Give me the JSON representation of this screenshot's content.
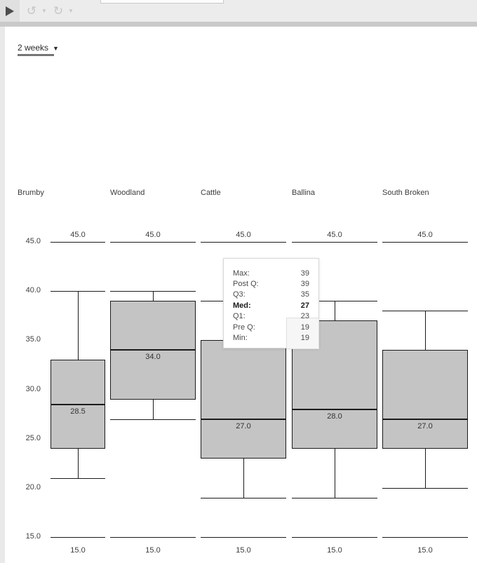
{
  "toolbar": {
    "play_icon": "play-triangle",
    "undo_icon": "undo-circular-arrow",
    "redo_icon": "redo-circular-arrow",
    "caret_glyph": "▼",
    "undo_glyph": "↺",
    "redo_glyph": "↻"
  },
  "filter": {
    "label": "2 weeks",
    "caret": "▼"
  },
  "colors": {
    "box_fill": "#c4c4c4",
    "line": "#1a1a1a",
    "toolbar_bg": "#ececec",
    "divider": "#c9c9c9",
    "accent_underline": "#757575",
    "muted_icon": "#c6c6c6",
    "dark_icon": "#4d4d4d",
    "tooltip_border": "#d6d6d6"
  },
  "chart_data": {
    "type": "boxplot",
    "title": "",
    "xlabel": "",
    "ylabel": "",
    "y_axis": {
      "range": [
        15,
        45
      ],
      "tick_values": [
        45,
        40,
        35,
        30,
        25,
        20,
        15
      ],
      "tick_labels": [
        "45.0",
        "40.0",
        "35.0",
        "30.0",
        "25.0",
        "20.0",
        "15.0"
      ],
      "grid": false
    },
    "column_limit": {
      "top_value": 45,
      "bottom_value": 15,
      "top_label": "45.0",
      "bottom_label": "15.0"
    },
    "series": [
      {
        "name": "Brumby",
        "max": 40,
        "q3": 33,
        "median": 28.5,
        "q1": 24,
        "min": 21,
        "median_label": "28.5"
      },
      {
        "name": "Woodland",
        "max": 40,
        "q3": 39,
        "median": 34,
        "q1": 29,
        "min": 27,
        "median_label": "34.0"
      },
      {
        "name": "Cattle",
        "max": 39,
        "q3": 35,
        "median": 27,
        "q1": 23,
        "min": 19,
        "median_label": "27.0"
      },
      {
        "name": "Ballina",
        "max": 39,
        "q3": 37,
        "median": 28,
        "q1": 24,
        "min": 19,
        "median_label": "28.0"
      },
      {
        "name": "South Broken",
        "max": 38,
        "q3": 34,
        "median": 27,
        "q1": 24,
        "min": 20,
        "median_label": "27.0"
      }
    ]
  },
  "tooltip": {
    "rows": [
      {
        "label": "Max:",
        "value": "39",
        "bold": false,
        "highlight": false
      },
      {
        "label": "Post Q:",
        "value": "39",
        "bold": false,
        "highlight": false
      },
      {
        "label": "Q3:",
        "value": "35",
        "bold": false,
        "highlight": false
      },
      {
        "label": "Med:",
        "value": "27",
        "bold": true,
        "highlight": false
      },
      {
        "label": "Q1:",
        "value": "23",
        "bold": false,
        "highlight": false
      },
      {
        "label": "Pre Q:",
        "value": "19",
        "bold": false,
        "highlight": true
      },
      {
        "label": "Min:",
        "value": "19",
        "bold": false,
        "highlight": true
      }
    ]
  }
}
